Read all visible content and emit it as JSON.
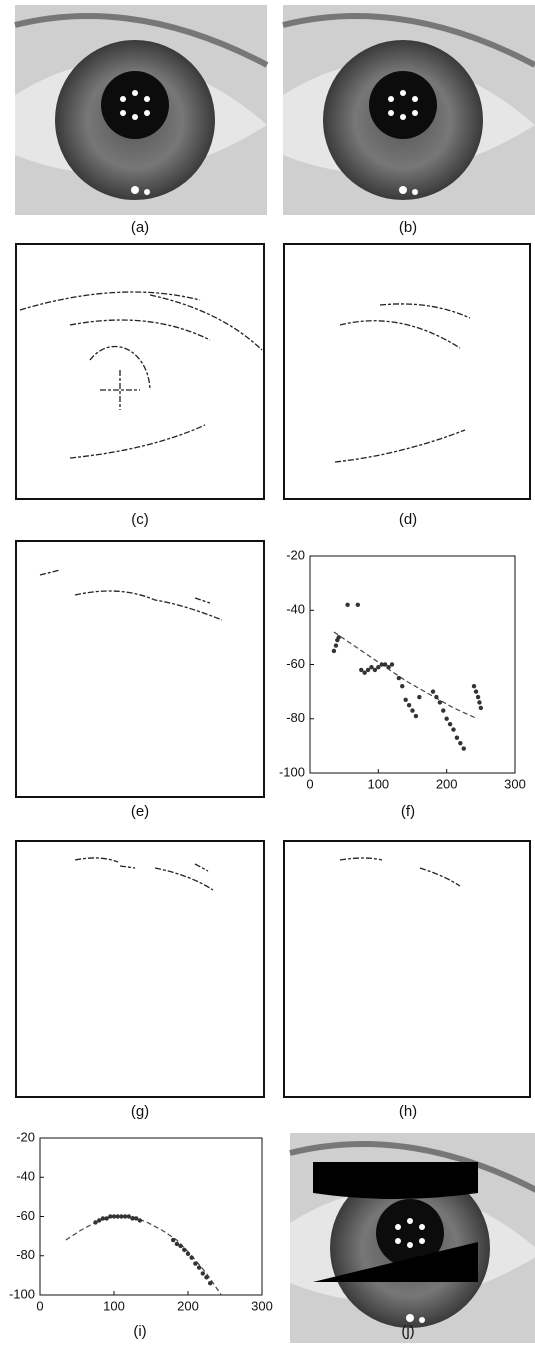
{
  "panels": {
    "labels": [
      "(a)",
      "(b)",
      "(c)",
      "(d)",
      "(e)",
      "(f)",
      "(g)",
      "(h)",
      "(i)",
      "(j)"
    ]
  },
  "chart_data": [
    {
      "type": "scatter",
      "color": "#333",
      "x": [
        35,
        38,
        40,
        42,
        55,
        70,
        75,
        80,
        85,
        90,
        95,
        100,
        105,
        110,
        115,
        120,
        130,
        135,
        140,
        145,
        150,
        155,
        160,
        180,
        185,
        190,
        195,
        200,
        205,
        210,
        215,
        220,
        225,
        240,
        243,
        246,
        248,
        250
      ],
      "values": [
        -55,
        -53,
        -51,
        -50,
        -38,
        -38,
        -62,
        -63,
        -62,
        -61,
        -62,
        -61,
        -60,
        -60,
        -61,
        -60,
        -65,
        -68,
        -73,
        -75,
        -77,
        -79,
        -72,
        -70,
        -72,
        -74,
        -77,
        -80,
        -82,
        -84,
        -87,
        -89,
        -91,
        -68,
        -70,
        -72,
        -74,
        -76
      ],
      "fit": {
        "x": [
          35,
          70,
          105,
          140,
          175,
          210,
          245
        ],
        "values": [
          -48,
          -54,
          -60,
          -66,
          -71,
          -76,
          -80
        ]
      },
      "xlim": [
        0,
        300
      ],
      "ylim": [
        -100,
        -20
      ],
      "xticks": [
        0,
        100,
        200,
        300
      ],
      "yticks": [
        -20,
        -40,
        -60,
        -80,
        -100
      ]
    },
    {
      "type": "scatter",
      "color": "#333",
      "x": [
        75,
        80,
        85,
        90,
        95,
        100,
        105,
        110,
        115,
        120,
        125,
        130,
        135,
        180,
        185,
        190,
        195,
        200,
        205,
        210,
        215,
        220,
        225,
        230
      ],
      "values": [
        -63,
        -62,
        -61,
        -61,
        -60,
        -60,
        -60,
        -60,
        -60,
        -60,
        -61,
        -61,
        -62,
        -72,
        -74,
        -75,
        -77,
        -79,
        -81,
        -84,
        -86,
        -89,
        -91,
        -94
      ],
      "fit": {
        "x": [
          35,
          55,
          75,
          95,
          110,
          125,
          145,
          165,
          185,
          205,
          225,
          245
        ],
        "values": [
          -72,
          -67,
          -63,
          -60,
          -60,
          -60,
          -63,
          -67,
          -72,
          -80,
          -89,
          -100
        ]
      },
      "xlim": [
        0,
        300
      ],
      "ylim": [
        -100,
        -20
      ],
      "xticks": [
        0,
        100,
        200,
        300
      ],
      "yticks": [
        -20,
        -40,
        -60,
        -80,
        -100
      ]
    }
  ]
}
